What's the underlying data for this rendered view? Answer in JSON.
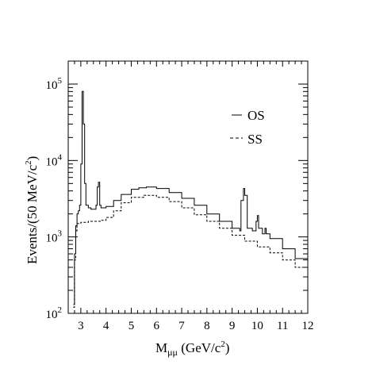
{
  "chart_data": {
    "type": "line",
    "xlabel_main": "M",
    "xlabel_sub": "μμ",
    "xlabel_units": " (GeV/c",
    "xlabel_units_exp": "2",
    "xlabel_units_close": ")",
    "ylabel": "Events/(50 MeV/c",
    "ylabel_exp": "2",
    "ylabel_close": ")",
    "xlim": [
      2.5,
      12
    ],
    "ylim": [
      100,
      200000
    ],
    "yscale": "log",
    "grid": false,
    "legend_position": "top-right",
    "x_ticks": [
      3,
      4,
      5,
      6,
      7,
      8,
      9,
      10,
      11,
      12
    ],
    "y_ticks": [
      {
        "value": 100,
        "base": "10",
        "exp": "2"
      },
      {
        "value": 1000,
        "base": "10",
        "exp": "3"
      },
      {
        "value": 10000,
        "base": "10",
        "exp": "4"
      },
      {
        "value": 100000,
        "base": "10",
        "exp": "5"
      }
    ],
    "series": [
      {
        "name": "OS",
        "style": "solid",
        "points": [
          [
            2.7,
            130
          ],
          [
            2.75,
            600
          ],
          [
            2.8,
            1400
          ],
          [
            2.85,
            2000
          ],
          [
            2.9,
            2200
          ],
          [
            2.95,
            2600
          ],
          [
            3.0,
            9000
          ],
          [
            3.05,
            80000
          ],
          [
            3.1,
            30000
          ],
          [
            3.15,
            5000
          ],
          [
            3.2,
            2600
          ],
          [
            3.3,
            2400
          ],
          [
            3.4,
            2300
          ],
          [
            3.5,
            2300
          ],
          [
            3.6,
            2600
          ],
          [
            3.65,
            4500
          ],
          [
            3.7,
            5200
          ],
          [
            3.75,
            2600
          ],
          [
            3.8,
            2400
          ],
          [
            4.0,
            2500
          ],
          [
            4.3,
            3000
          ],
          [
            4.6,
            3600
          ],
          [
            5.0,
            4200
          ],
          [
            5.3,
            4400
          ],
          [
            5.6,
            4500
          ],
          [
            6.0,
            4300
          ],
          [
            6.5,
            3800
          ],
          [
            7.0,
            3200
          ],
          [
            7.5,
            2600
          ],
          [
            8.0,
            2000
          ],
          [
            8.5,
            1600
          ],
          [
            9.0,
            1300
          ],
          [
            9.3,
            1200
          ],
          [
            9.35,
            3000
          ],
          [
            9.45,
            4300
          ],
          [
            9.5,
            3500
          ],
          [
            9.6,
            1300
          ],
          [
            9.8,
            1200
          ],
          [
            9.95,
            1600
          ],
          [
            10.0,
            1900
          ],
          [
            10.05,
            1300
          ],
          [
            10.2,
            1100
          ],
          [
            10.3,
            1300
          ],
          [
            10.35,
            1100
          ],
          [
            10.5,
            950
          ],
          [
            11.0,
            700
          ],
          [
            11.5,
            520
          ],
          [
            12.0,
            400
          ]
        ]
      },
      {
        "name": "SS",
        "style": "dashed",
        "points": [
          [
            2.7,
            120
          ],
          [
            2.75,
            500
          ],
          [
            2.8,
            1200
          ],
          [
            2.85,
            1500
          ],
          [
            3.0,
            1550
          ],
          [
            3.3,
            1600
          ],
          [
            3.6,
            1600
          ],
          [
            3.8,
            1650
          ],
          [
            4.0,
            1800
          ],
          [
            4.3,
            2200
          ],
          [
            4.6,
            2800
          ],
          [
            5.0,
            3300
          ],
          [
            5.5,
            3500
          ],
          [
            6.0,
            3300
          ],
          [
            6.5,
            2900
          ],
          [
            7.0,
            2400
          ],
          [
            7.5,
            1950
          ],
          [
            8.0,
            1600
          ],
          [
            8.5,
            1300
          ],
          [
            9.0,
            1050
          ],
          [
            9.5,
            880
          ],
          [
            10.0,
            740
          ],
          [
            10.5,
            620
          ],
          [
            11.0,
            500
          ],
          [
            11.5,
            400
          ],
          [
            12.0,
            290
          ]
        ]
      }
    ]
  }
}
